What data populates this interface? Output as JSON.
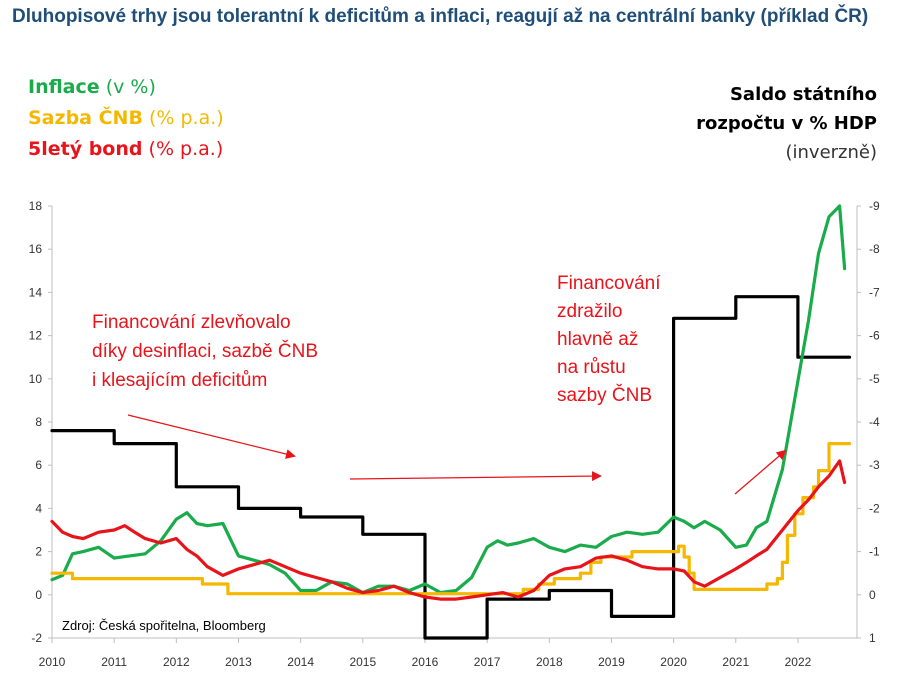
{
  "title": "Dluhopisové trhy jsou tolerantní k deficitům a inflaci, reagují až na centrální banky (příklad ČR)",
  "legend": [
    {
      "name": "Inflace",
      "unit": "(v %)",
      "color": "#1aab4b"
    },
    {
      "name": "Sazba ČNB",
      "unit": "(% p.a.)",
      "color": "#f5b800"
    },
    {
      "name": "5letý bond",
      "unit": "(% p.a.)",
      "color": "#e8141b"
    }
  ],
  "right_axis_label": {
    "line1": "Saldo státního",
    "line2": "rozpočtu v % HDP",
    "line3": "(inverzně)"
  },
  "annotations": [
    {
      "lines": [
        "Financování zlevňovalo",
        "díky desinflaci, sazbě ČNB",
        "i klesajícím deficitům"
      ]
    },
    {
      "lines": [
        "Financování",
        "zdražilo",
        "hlavně až",
        "na růstu",
        "sazby ČNB"
      ]
    }
  ],
  "source": "Zdroj: Česká spořitelna, Bloomberg",
  "chart_data": {
    "type": "line",
    "x_ticks": [
      "2010",
      "2011",
      "2012",
      "2013",
      "2014",
      "2015",
      "2016",
      "2017",
      "2018",
      "2019",
      "2020",
      "2021",
      "2022"
    ],
    "y_left_ticks": [
      "-2",
      "0",
      "2",
      "4",
      "6",
      "8",
      "10",
      "12",
      "14",
      "16",
      "18"
    ],
    "y_left_range": [
      -2,
      18
    ],
    "y_right_ticks": [
      "1",
      "0",
      "-1",
      "-2",
      "-3",
      "-4",
      "-5",
      "-6",
      "-7",
      "-8",
      "-9"
    ],
    "y_right_range": [
      1,
      -9
    ],
    "y_right_inverted": true,
    "grid": false,
    "series": [
      {
        "name": "Saldo státního rozpočtu v % HDP (inverzně)",
        "axis": "right",
        "color": "#000000",
        "step": true,
        "points": [
          [
            2010.0,
            -3.8
          ],
          [
            2011.0,
            -3.5
          ],
          [
            2012.0,
            -2.5
          ],
          [
            2013.0,
            -2.0
          ],
          [
            2014.0,
            -1.8
          ],
          [
            2015.0,
            -1.4
          ],
          [
            2016.0,
            1.0
          ],
          [
            2017.0,
            0.1
          ],
          [
            2018.0,
            -0.1
          ],
          [
            2019.0,
            0.5
          ],
          [
            2020.0,
            -6.4
          ],
          [
            2021.0,
            -6.9
          ],
          [
            2022.0,
            -5.5
          ],
          [
            2022.83,
            -5.5
          ]
        ]
      },
      {
        "name": "Inflace",
        "axis": "left",
        "color": "#1aab4b",
        "points": [
          [
            2010.0,
            0.7
          ],
          [
            2010.17,
            0.9
          ],
          [
            2010.33,
            1.9
          ],
          [
            2010.5,
            2.0
          ],
          [
            2010.75,
            2.2
          ],
          [
            2011.0,
            1.7
          ],
          [
            2011.25,
            1.8
          ],
          [
            2011.5,
            1.9
          ],
          [
            2011.75,
            2.5
          ],
          [
            2012.0,
            3.5
          ],
          [
            2012.17,
            3.8
          ],
          [
            2012.33,
            3.3
          ],
          [
            2012.5,
            3.2
          ],
          [
            2012.75,
            3.3
          ],
          [
            2013.0,
            1.8
          ],
          [
            2013.25,
            1.6
          ],
          [
            2013.5,
            1.4
          ],
          [
            2013.75,
            1.0
          ],
          [
            2014.0,
            0.2
          ],
          [
            2014.25,
            0.2
          ],
          [
            2014.5,
            0.6
          ],
          [
            2014.75,
            0.5
          ],
          [
            2015.0,
            0.1
          ],
          [
            2015.25,
            0.4
          ],
          [
            2015.5,
            0.4
          ],
          [
            2015.75,
            0.2
          ],
          [
            2016.0,
            0.5
          ],
          [
            2016.25,
            0.1
          ],
          [
            2016.5,
            0.2
          ],
          [
            2016.75,
            0.8
          ],
          [
            2017.0,
            2.2
          ],
          [
            2017.17,
            2.5
          ],
          [
            2017.33,
            2.3
          ],
          [
            2017.5,
            2.4
          ],
          [
            2017.75,
            2.6
          ],
          [
            2018.0,
            2.2
          ],
          [
            2018.25,
            2.0
          ],
          [
            2018.5,
            2.3
          ],
          [
            2018.75,
            2.2
          ],
          [
            2019.0,
            2.7
          ],
          [
            2019.25,
            2.9
          ],
          [
            2019.5,
            2.8
          ],
          [
            2019.75,
            2.9
          ],
          [
            2020.0,
            3.6
          ],
          [
            2020.17,
            3.4
          ],
          [
            2020.33,
            3.1
          ],
          [
            2020.5,
            3.4
          ],
          [
            2020.75,
            3.0
          ],
          [
            2021.0,
            2.2
          ],
          [
            2021.17,
            2.3
          ],
          [
            2021.33,
            3.1
          ],
          [
            2021.5,
            3.4
          ],
          [
            2021.75,
            5.8
          ],
          [
            2022.0,
            9.9
          ],
          [
            2022.17,
            12.7
          ],
          [
            2022.33,
            15.8
          ],
          [
            2022.5,
            17.5
          ],
          [
            2022.67,
            18.0
          ],
          [
            2022.75,
            15.1
          ]
        ]
      },
      {
        "name": "Sazba ČNB",
        "axis": "left",
        "color": "#f5b800",
        "step": true,
        "points": [
          [
            2010.0,
            1.0
          ],
          [
            2010.33,
            0.75
          ],
          [
            2012.42,
            0.5
          ],
          [
            2012.83,
            0.05
          ],
          [
            2017.58,
            0.25
          ],
          [
            2017.83,
            0.5
          ],
          [
            2018.08,
            0.75
          ],
          [
            2018.5,
            1.0
          ],
          [
            2018.67,
            1.5
          ],
          [
            2018.83,
            1.75
          ],
          [
            2019.33,
            2.0
          ],
          [
            2020.08,
            2.25
          ],
          [
            2020.17,
            1.75
          ],
          [
            2020.25,
            1.0
          ],
          [
            2020.33,
            0.25
          ],
          [
            2021.5,
            0.5
          ],
          [
            2021.67,
            0.75
          ],
          [
            2021.75,
            1.5
          ],
          [
            2021.83,
            2.75
          ],
          [
            2021.95,
            3.75
          ],
          [
            2022.08,
            4.5
          ],
          [
            2022.25,
            5.0
          ],
          [
            2022.33,
            5.75
          ],
          [
            2022.5,
            7.0
          ],
          [
            2022.83,
            7.0
          ]
        ]
      },
      {
        "name": "5letý bond",
        "axis": "left",
        "color": "#e8141b",
        "points": [
          [
            2010.0,
            3.4
          ],
          [
            2010.17,
            2.9
          ],
          [
            2010.33,
            2.7
          ],
          [
            2010.5,
            2.6
          ],
          [
            2010.75,
            2.9
          ],
          [
            2011.0,
            3.0
          ],
          [
            2011.17,
            3.2
          ],
          [
            2011.33,
            2.9
          ],
          [
            2011.5,
            2.6
          ],
          [
            2011.75,
            2.4
          ],
          [
            2012.0,
            2.6
          ],
          [
            2012.17,
            2.1
          ],
          [
            2012.33,
            1.8
          ],
          [
            2012.5,
            1.3
          ],
          [
            2012.75,
            0.9
          ],
          [
            2013.0,
            1.2
          ],
          [
            2013.25,
            1.4
          ],
          [
            2013.5,
            1.6
          ],
          [
            2013.75,
            1.3
          ],
          [
            2014.0,
            1.0
          ],
          [
            2014.25,
            0.8
          ],
          [
            2014.5,
            0.6
          ],
          [
            2014.75,
            0.3
          ],
          [
            2015.0,
            0.1
          ],
          [
            2015.25,
            0.2
          ],
          [
            2015.5,
            0.4
          ],
          [
            2015.75,
            0.1
          ],
          [
            2016.0,
            -0.1
          ],
          [
            2016.25,
            -0.2
          ],
          [
            2016.5,
            -0.2
          ],
          [
            2016.75,
            -0.1
          ],
          [
            2017.0,
            0.0
          ],
          [
            2017.25,
            0.1
          ],
          [
            2017.5,
            -0.1
          ],
          [
            2017.75,
            0.2
          ],
          [
            2018.0,
            0.9
          ],
          [
            2018.25,
            1.2
          ],
          [
            2018.5,
            1.3
          ],
          [
            2018.75,
            1.7
          ],
          [
            2019.0,
            1.8
          ],
          [
            2019.25,
            1.6
          ],
          [
            2019.5,
            1.3
          ],
          [
            2019.75,
            1.2
          ],
          [
            2020.0,
            1.2
          ],
          [
            2020.17,
            1.1
          ],
          [
            2020.33,
            0.6
          ],
          [
            2020.5,
            0.4
          ],
          [
            2020.75,
            0.8
          ],
          [
            2021.0,
            1.2
          ],
          [
            2021.17,
            1.5
          ],
          [
            2021.33,
            1.8
          ],
          [
            2021.5,
            2.1
          ],
          [
            2021.75,
            3.0
          ],
          [
            2022.0,
            3.9
          ],
          [
            2022.17,
            4.4
          ],
          [
            2022.33,
            5.0
          ],
          [
            2022.5,
            5.5
          ],
          [
            2022.67,
            6.2
          ],
          [
            2022.75,
            5.2
          ]
        ]
      }
    ]
  }
}
